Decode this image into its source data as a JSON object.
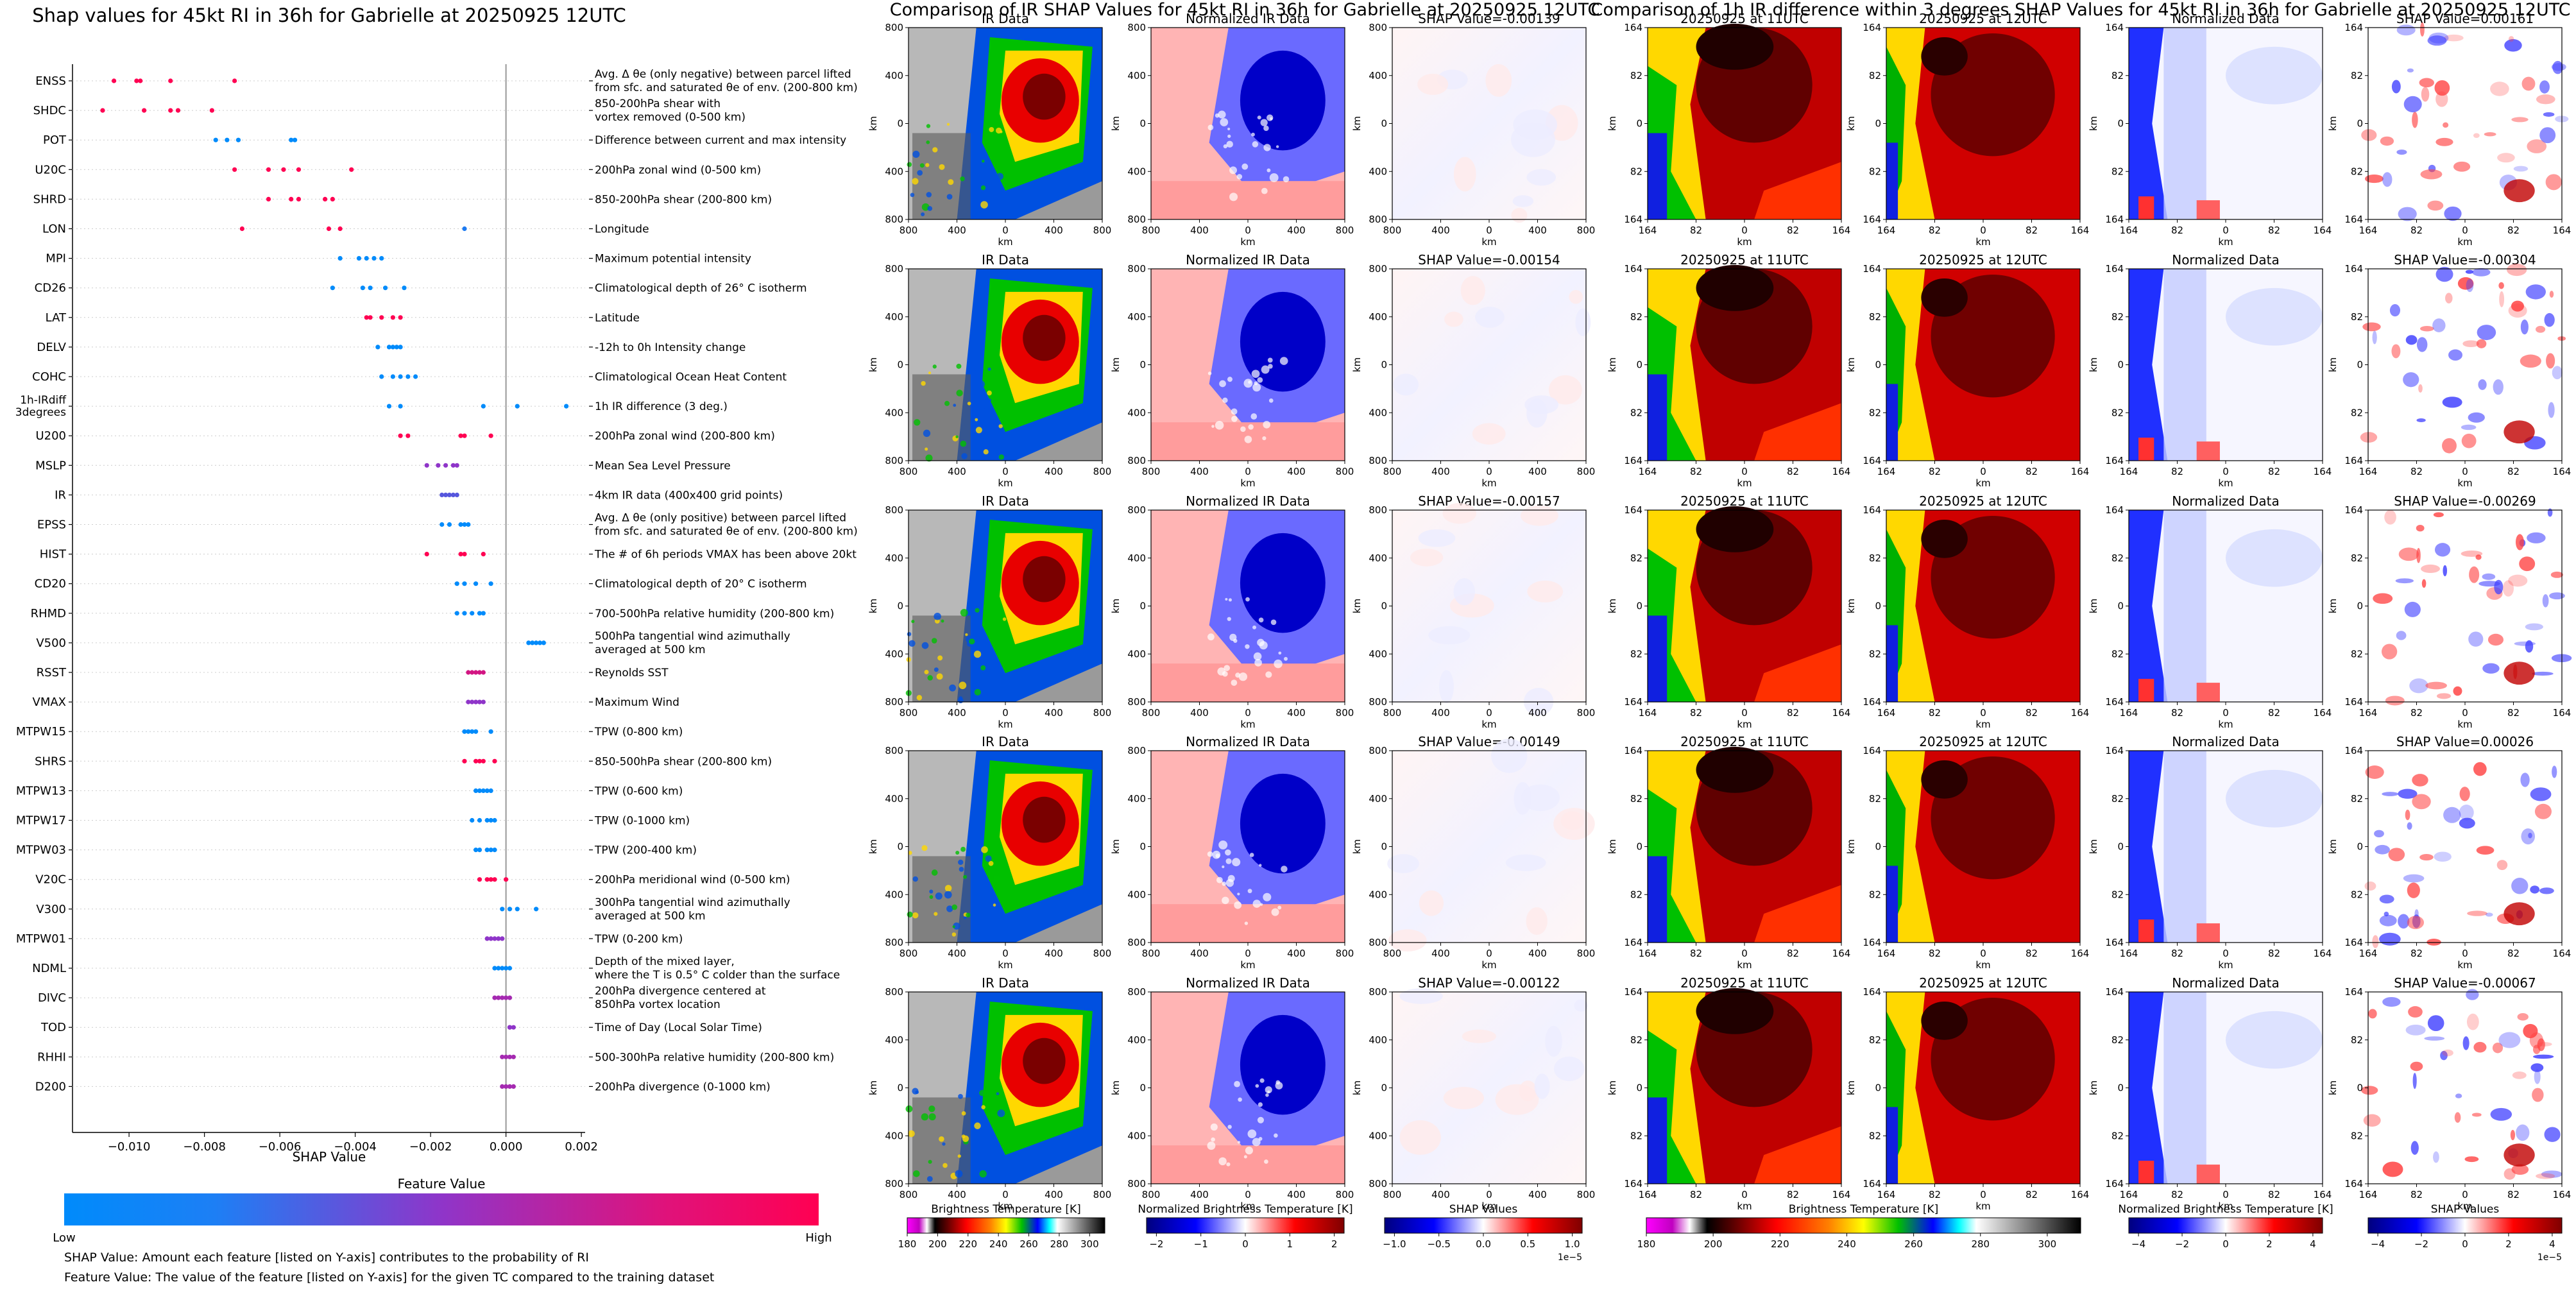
{
  "left_panel": {
    "title": "Shap values for 45kt RI in 36h for Gabrielle at 20250925 12UTC",
    "xlabel": "SHAP Value",
    "xticks": [
      "-0.010",
      "-0.008",
      "-0.006",
      "-0.004",
      "-0.002",
      "0.000",
      "0.002"
    ],
    "colorbar_title": "Feature Value",
    "colorbar_low": "Low",
    "colorbar_high": "High",
    "colors": {
      "low": "#008bfb",
      "high": "#ff0052"
    },
    "note1": "SHAP Value: Amount each feature [listed on Y-axis] contributes to the probability of RI",
    "note2": "Feature Value: The value of the feature [listed on Y-axis] for the given TC compared to the training dataset"
  },
  "features": [
    {
      "name": "ENSS",
      "desc": [
        "Avg. Δ θe (only negative) between parcel lifted",
        "from sfc. and saturated θe of env. (200-800 km)"
      ]
    },
    {
      "name": "SHDC",
      "desc": [
        "850-200hPa shear with",
        "vortex removed (0-500 km)"
      ]
    },
    {
      "name": "POT",
      "desc": [
        "Difference between current and max intensity"
      ]
    },
    {
      "name": "U20C",
      "desc": [
        "200hPa zonal wind (0-500 km)"
      ]
    },
    {
      "name": "SHRD",
      "desc": [
        "850-200hPa shear (200-800 km)"
      ]
    },
    {
      "name": "LON",
      "desc": [
        "Longitude"
      ]
    },
    {
      "name": "MPI",
      "desc": [
        "Maximum potential intensity"
      ]
    },
    {
      "name": "CD26",
      "desc": [
        "Climatological depth of 26° C isotherm"
      ]
    },
    {
      "name": "LAT",
      "desc": [
        "Latitude"
      ]
    },
    {
      "name": "DELV",
      "desc": [
        "-12h to 0h Intensity change"
      ]
    },
    {
      "name": "COHC",
      "desc": [
        "Climatological Ocean Heat Content"
      ]
    },
    {
      "name": "1h-IRdiff 3degrees",
      "desc": [
        "1h IR difference (3 deg.)"
      ]
    },
    {
      "name": "U200",
      "desc": [
        "200hPa zonal wind (200-800 km)"
      ]
    },
    {
      "name": "MSLP",
      "desc": [
        "Mean Sea Level Pressure"
      ]
    },
    {
      "name": "IR",
      "desc": [
        "4km IR data (400x400 grid points)"
      ]
    },
    {
      "name": "EPSS",
      "desc": [
        "Avg. Δ θe (only positive) between parcel lifted",
        "from sfc. and saturated θe of env. (200-800 km)"
      ]
    },
    {
      "name": "HIST",
      "desc": [
        "The # of 6h periods VMAX has been above 20kt"
      ]
    },
    {
      "name": "CD20",
      "desc": [
        "Climatological depth of 20° C isotherm"
      ]
    },
    {
      "name": "RHMD",
      "desc": [
        "700-500hPa relative humidity (200-800 km)"
      ]
    },
    {
      "name": "V500",
      "desc": [
        "500hPa tangential wind azimuthally",
        "averaged at 500 km"
      ]
    },
    {
      "name": "RSST",
      "desc": [
        "Reynolds SST"
      ]
    },
    {
      "name": "VMAX",
      "desc": [
        "Maximum Wind"
      ]
    },
    {
      "name": "MTPW15",
      "desc": [
        "TPW (0-800 km)"
      ]
    },
    {
      "name": "SHRS",
      "desc": [
        "850-500hPa shear (200-800 km)"
      ]
    },
    {
      "name": "MTPW13",
      "desc": [
        "TPW (0-600 km)"
      ]
    },
    {
      "name": "MTPW17",
      "desc": [
        "TPW (0-1000 km)"
      ]
    },
    {
      "name": "MTPW03",
      "desc": [
        "TPW (200-400 km)"
      ]
    },
    {
      "name": "V20C",
      "desc": [
        "200hPa meridional wind (0-500 km)"
      ]
    },
    {
      "name": "V300",
      "desc": [
        "300hPa tangential wind azimuthally",
        "averaged at 500 km"
      ]
    },
    {
      "name": "MTPW01",
      "desc": [
        "TPW (0-200 km)"
      ]
    },
    {
      "name": "NDML",
      "desc": [
        "Depth of the mixed layer,",
        "where the T is 0.5° C colder than the surface"
      ]
    },
    {
      "name": "DIVC",
      "desc": [
        "200hPa divergence centered at",
        "850hPa vortex location"
      ]
    },
    {
      "name": "TOD",
      "desc": [
        "Time of Day (Local Solar Time)"
      ]
    },
    {
      "name": "RHHI",
      "desc": [
        "500-300hPa relative humidity (200-800 km)"
      ]
    },
    {
      "name": "D200",
      "desc": [
        "200hPa divergence (0-1000 km)"
      ]
    }
  ],
  "chart_data": {
    "type": "scatter",
    "title": "Shap values for 45kt RI in 36h for Gabrielle at 20250925 12UTC",
    "xlabel": "SHAP Value",
    "xlim": [
      -0.0115,
      0.0021
    ],
    "points": [
      [
        [
          -0.0104,
          1
        ],
        [
          -0.0098,
          1
        ],
        [
          -0.0097,
          1
        ],
        [
          -0.0089,
          1
        ],
        [
          -0.0072,
          1
        ]
      ],
      [
        [
          -0.0107,
          1
        ],
        [
          -0.0096,
          1
        ],
        [
          -0.0089,
          1
        ],
        [
          -0.0087,
          1
        ],
        [
          -0.0078,
          1
        ]
      ],
      [
        [
          -0.0077,
          0
        ],
        [
          -0.0074,
          0
        ],
        [
          -0.0071,
          0
        ],
        [
          -0.0057,
          0
        ],
        [
          -0.0056,
          0
        ]
      ],
      [
        [
          -0.0072,
          1
        ],
        [
          -0.0063,
          1
        ],
        [
          -0.0059,
          1
        ],
        [
          -0.0055,
          1
        ],
        [
          -0.0041,
          1
        ]
      ],
      [
        [
          -0.0063,
          1
        ],
        [
          -0.0057,
          1
        ],
        [
          -0.0055,
          1
        ],
        [
          -0.0048,
          1
        ],
        [
          -0.0046,
          1
        ]
      ],
      [
        [
          -0.007,
          1
        ],
        [
          -0.0047,
          1
        ],
        [
          -0.0044,
          1
        ],
        [
          -0.0011,
          0.1
        ]
      ],
      [
        [
          -0.0044,
          0
        ],
        [
          -0.0039,
          0
        ],
        [
          -0.0037,
          0
        ],
        [
          -0.0035,
          0
        ],
        [
          -0.0033,
          0
        ]
      ],
      [
        [
          -0.0046,
          0
        ],
        [
          -0.0038,
          0
        ],
        [
          -0.0036,
          0
        ],
        [
          -0.0032,
          0
        ],
        [
          -0.0027,
          0
        ]
      ],
      [
        [
          -0.0037,
          1
        ],
        [
          -0.0036,
          1
        ],
        [
          -0.0033,
          1
        ],
        [
          -0.003,
          1
        ],
        [
          -0.0028,
          1
        ]
      ],
      [
        [
          -0.0034,
          0
        ],
        [
          -0.0031,
          0
        ],
        [
          -0.003,
          0
        ],
        [
          -0.0029,
          0
        ],
        [
          -0.0028,
          0
        ]
      ],
      [
        [
          -0.0033,
          0
        ],
        [
          -0.003,
          0
        ],
        [
          -0.0028,
          0
        ],
        [
          -0.0026,
          0
        ],
        [
          -0.0024,
          0
        ]
      ],
      [
        [
          -0.0031,
          0
        ],
        [
          -0.0028,
          0
        ],
        [
          -0.0006,
          0
        ],
        [
          0.0003,
          0
        ],
        [
          0.0016,
          0
        ]
      ],
      [
        [
          -0.0028,
          1
        ],
        [
          -0.0026,
          1
        ],
        [
          -0.0012,
          1
        ],
        [
          -0.0011,
          1
        ],
        [
          -0.0004,
          1
        ]
      ],
      [
        [
          -0.0021,
          0.5
        ],
        [
          -0.0018,
          0.5
        ],
        [
          -0.0016,
          0.5
        ],
        [
          -0.0014,
          0.5
        ],
        [
          -0.0013,
          0.5
        ]
      ],
      [
        [
          -0.0017,
          0.3
        ],
        [
          -0.0016,
          0.3
        ],
        [
          -0.0015,
          0.3
        ],
        [
          -0.0014,
          0.3
        ],
        [
          -0.0013,
          0.3
        ]
      ],
      [
        [
          -0.0017,
          0
        ],
        [
          -0.0015,
          0
        ],
        [
          -0.0012,
          0
        ],
        [
          -0.0011,
          0
        ],
        [
          -0.001,
          0
        ]
      ],
      [
        [
          -0.0021,
          1
        ],
        [
          -0.0012,
          1
        ],
        [
          -0.0011,
          1
        ],
        [
          -0.0006,
          1
        ]
      ],
      [
        [
          -0.0013,
          0
        ],
        [
          -0.0011,
          0
        ],
        [
          -0.0008,
          0
        ],
        [
          -0.0004,
          0
        ]
      ],
      [
        [
          -0.0013,
          0
        ],
        [
          -0.0011,
          0
        ],
        [
          -0.0009,
          0
        ],
        [
          -0.0007,
          0
        ],
        [
          -0.0006,
          0
        ]
      ],
      [
        [
          0.0006,
          0
        ],
        [
          0.0007,
          0
        ],
        [
          0.0008,
          0
        ],
        [
          0.0009,
          0
        ],
        [
          0.001,
          0
        ]
      ],
      [
        [
          -0.001,
          0.8
        ],
        [
          -0.0009,
          0.8
        ],
        [
          -0.0008,
          0.8
        ],
        [
          -0.0007,
          0.8
        ],
        [
          -0.0006,
          0.8
        ]
      ],
      [
        [
          -0.001,
          0.5
        ],
        [
          -0.0009,
          0.5
        ],
        [
          -0.0008,
          0.5
        ],
        [
          -0.0007,
          0.5
        ],
        [
          -0.0006,
          0.5
        ]
      ],
      [
        [
          -0.0011,
          0
        ],
        [
          -0.001,
          0
        ],
        [
          -0.0009,
          0
        ],
        [
          -0.0008,
          0
        ],
        [
          -0.0004,
          0
        ]
      ],
      [
        [
          -0.0011,
          1
        ],
        [
          -0.0008,
          1
        ],
        [
          -0.0007,
          1
        ],
        [
          -0.0006,
          1
        ],
        [
          -0.0003,
          1
        ]
      ],
      [
        [
          -0.0008,
          0
        ],
        [
          -0.0007,
          0
        ],
        [
          -0.0006,
          0
        ],
        [
          -0.0005,
          0
        ],
        [
          -0.0004,
          0
        ]
      ],
      [
        [
          -0.0009,
          0
        ],
        [
          -0.0007,
          0
        ],
        [
          -0.0005,
          0
        ],
        [
          -0.0004,
          0
        ],
        [
          -0.0003,
          0
        ]
      ],
      [
        [
          -0.0008,
          0
        ],
        [
          -0.0007,
          0
        ],
        [
          -0.0005,
          0
        ],
        [
          -0.0004,
          0
        ],
        [
          -0.0003,
          0
        ]
      ],
      [
        [
          -0.0007,
          1
        ],
        [
          -0.0005,
          1
        ],
        [
          -0.0004,
          1
        ],
        [
          -0.0003,
          1
        ],
        [
          0.0,
          1
        ]
      ],
      [
        [
          -0.0001,
          0
        ],
        [
          0.0001,
          0
        ],
        [
          0.0003,
          0
        ],
        [
          0.0008,
          0
        ]
      ],
      [
        [
          -0.0005,
          0.5
        ],
        [
          -0.0004,
          0.5
        ],
        [
          -0.0003,
          0.5
        ],
        [
          -0.0002,
          0.5
        ],
        [
          -0.0001,
          0.5
        ]
      ],
      [
        [
          -0.0003,
          0
        ],
        [
          -0.0002,
          0
        ],
        [
          -0.0001,
          0
        ],
        [
          0.0,
          0
        ],
        [
          0.0001,
          0
        ]
      ],
      [
        [
          -0.0003,
          0.6
        ],
        [
          -0.0002,
          0.6
        ],
        [
          -0.0001,
          0.6
        ],
        [
          0.0,
          0.6
        ],
        [
          0.0001,
          0.6
        ]
      ],
      [
        [
          0.0001,
          0.5
        ],
        [
          0.0001,
          0.5
        ],
        [
          0.0002,
          0.5
        ]
      ],
      [
        [
          -0.0001,
          0.6
        ],
        [
          0.0,
          0.6
        ],
        [
          0.0001,
          0.6
        ],
        [
          0.0002,
          0.6
        ]
      ],
      [
        [
          -0.0001,
          0.6
        ],
        [
          0.0,
          0.6
        ],
        [
          0.0001,
          0.6
        ],
        [
          0.0002,
          0.6
        ]
      ]
    ]
  },
  "middle_panel": {
    "suptitle": "Comparison of IR SHAP Values for 45kt RI in 36h for Gabrielle at 20250925 12UTC",
    "col_titles": [
      "IR Data",
      "Normalized IR Data"
    ],
    "shap_titles": [
      "SHAP Value=-0.00139",
      "SHAP Value=-0.00154",
      "SHAP Value=-0.00157",
      "SHAP Value=-0.00149",
      "SHAP Value=-0.00122"
    ],
    "ticks": [
      "800",
      "400",
      "0",
      "400",
      "800"
    ],
    "axis_label": "km",
    "cbars": [
      {
        "label": "Brightness Temperature [K]",
        "ticks": [
          "180",
          "200",
          "220",
          "240",
          "260",
          "280",
          "300"
        ],
        "offset": ""
      },
      {
        "label": "Normalized Brightness Temperature [K]",
        "ticks": [
          "−2",
          "−1",
          "0",
          "1",
          "2"
        ],
        "offset": ""
      },
      {
        "label": "SHAP Values",
        "ticks": [
          "−1.0",
          "−0.5",
          "0.0",
          "0.5",
          "1.0"
        ],
        "offset": "1e−5"
      }
    ]
  },
  "right_panel": {
    "suptitle": "Comparison of 1h IR difference within 3 degrees SHAP Values for 45kt RI in 36h for Gabrielle at 20250925 12UTC",
    "col_titles": [
      "20250925 at 11UTC",
      "20250925 at 12UTC",
      "Normalized Data"
    ],
    "shap_titles": [
      "SHAP Value=0.00161",
      "SHAP Value=-0.00304",
      "SHAP Value=-0.00269",
      "SHAP Value=0.00026",
      "SHAP Value=-0.00067"
    ],
    "ticks": [
      "164",
      "82",
      "0",
      "82",
      "164"
    ],
    "axis_label": "km",
    "cbars": [
      {
        "label": "Brightness Temperature [K]",
        "ticks": [
          "180",
          "200",
          "220",
          "240",
          "260",
          "280",
          "300"
        ],
        "offset": ""
      },
      {
        "label": "Normalized Brightness Temperature [K]",
        "ticks": [
          "−4",
          "−2",
          "0",
          "2",
          "4"
        ],
        "offset": ""
      },
      {
        "label": "SHAP Values",
        "ticks": [
          "−4",
          "−2",
          "0",
          "2",
          "4"
        ],
        "offset": "1e−5"
      }
    ]
  }
}
